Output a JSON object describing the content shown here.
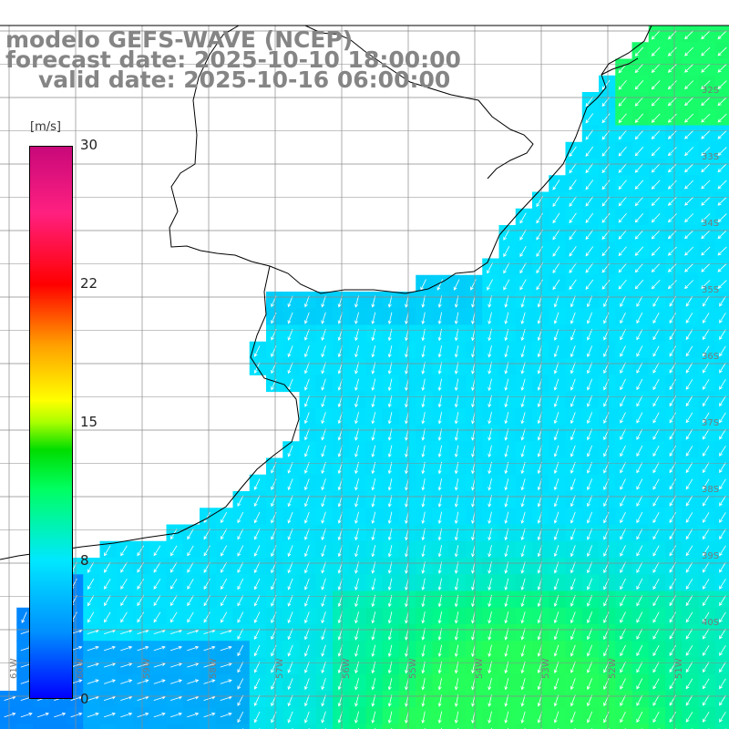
{
  "title": {
    "line1": "modelo GEFS-WAVE (NCEP)",
    "line2": "forecast date: 2025-10-10 18:00:00",
    "line3": "valid date: 2025-10-16 06:00:00"
  },
  "colorbar": {
    "unit": "[m/s]",
    "ticks": [
      "30",
      "22",
      "15",
      "8",
      "0"
    ],
    "min": 0,
    "max": 30
  },
  "lat_labels": [
    "32S",
    "33S",
    "34S",
    "35S",
    "36S",
    "37S",
    "38S",
    "39S",
    "40S"
  ],
  "lon_labels": [
    "61W",
    "60W",
    "59W",
    "58W",
    "57W",
    "56W",
    "55W",
    "54W",
    "53W",
    "52W",
    "51W"
  ],
  "colors": {
    "land": "#ffffff",
    "grid": "#8a8a8a",
    "arrow": "#ffffff",
    "title": "#858585"
  }
}
